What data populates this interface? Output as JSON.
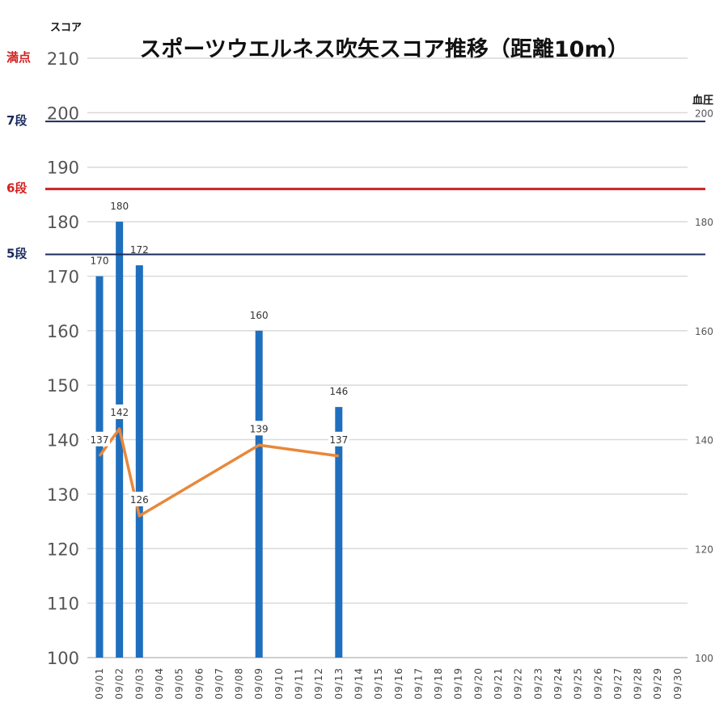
{
  "chart_data": {
    "type": "bar+line",
    "title": "スポーツウエルネス吹矢スコア推移（距離10m）",
    "ylabel_left": "スコア",
    "ylabel_right": "血圧",
    "ylim": [
      100,
      210
    ],
    "y_ticks_left": [
      "100",
      "110",
      "120",
      "130",
      "140",
      "150",
      "160",
      "170",
      "180",
      "190",
      "200",
      "210"
    ],
    "y_ticks_right": [
      "100",
      "120",
      "140",
      "160",
      "180",
      "200"
    ],
    "categories": [
      "09/01",
      "09/02",
      "09/03",
      "09/04",
      "09/05",
      "09/06",
      "09/07",
      "09/08",
      "09/09",
      "09/10",
      "09/11",
      "09/12",
      "09/13",
      "09/14",
      "09/15",
      "09/16",
      "09/17",
      "09/18",
      "09/19",
      "09/20",
      "09/21",
      "09/22",
      "09/23",
      "09/24",
      "09/25",
      "09/26",
      "09/27",
      "09/28",
      "09/29",
      "09/30"
    ],
    "series": [
      {
        "values": [
          170,
          180,
          172,
          null,
          null,
          null,
          null,
          null,
          160,
          null,
          null,
          null,
          146,
          null,
          null,
          null,
          null,
          null,
          null,
          null,
          null,
          null,
          null,
          null,
          null,
          null,
          null,
          null,
          null,
          null
        ],
        "color": "#1f6fbf"
      },
      {
        "values": [
          137,
          142,
          126,
          null,
          null,
          null,
          null,
          null,
          139,
          null,
          null,
          null,
          137,
          null,
          null,
          null,
          null,
          null,
          null,
          null,
          null,
          null,
          null,
          null,
          null,
          null,
          null,
          null,
          null,
          null
        ],
        "color": "#e8883a"
      }
    ],
    "reference_lines": [
      {
        "label": "満点",
        "value": 210,
        "color": "#d42020"
      },
      {
        "label": "7段",
        "value": 198.4,
        "color": "#1a2a5e"
      },
      {
        "label": "6段",
        "value": 186,
        "color": "#d42020"
      },
      {
        "label": "5段",
        "value": 174,
        "color": "#1a2a5e"
      }
    ],
    "grid": true
  }
}
